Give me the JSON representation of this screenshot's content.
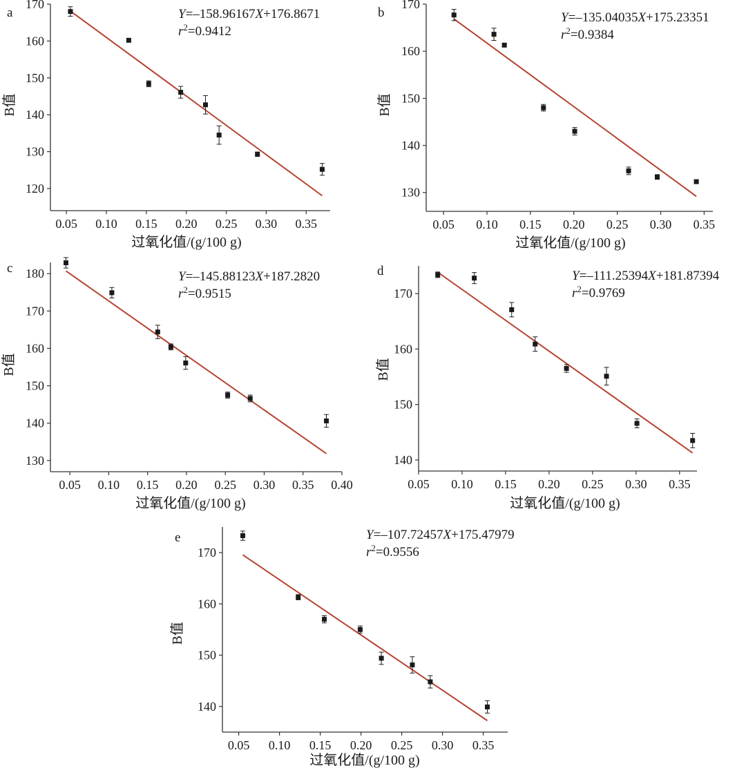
{
  "colors": {
    "fit_line": "#b5422f",
    "marker": "#1a1a1a",
    "axis": "#333333"
  },
  "chart_data": [
    {
      "type": "scatter",
      "panel": "a",
      "xlabel": "过氧化值/(g/100 g)",
      "ylabel": "B值",
      "xlim": [
        0.03,
        0.38
      ],
      "ylim": [
        114,
        170
      ],
      "xticks": [
        0.05,
        0.1,
        0.15,
        0.2,
        0.25,
        0.3,
        0.35
      ],
      "yticks": [
        120,
        130,
        140,
        150,
        160,
        170
      ],
      "x": [
        0.055,
        0.128,
        0.153,
        0.193,
        0.224,
        0.241,
        0.289,
        0.37
      ],
      "y": [
        168.0,
        160.2,
        148.4,
        146.1,
        142.7,
        134.5,
        129.3,
        125.2
      ],
      "err": [
        1.3,
        0.5,
        0.8,
        1.6,
        2.5,
        2.5,
        0.6,
        1.6
      ],
      "fit_x": [
        0.055,
        0.37
      ],
      "equation": {
        "y_var": "Y",
        "eq1": "=–158.96167",
        "x_var": "X",
        "eq2": "+176.8671",
        "r_var": "r",
        "r_sup": "2",
        "r_val": "=0.9412"
      }
    },
    {
      "type": "scatter",
      "panel": "b",
      "xlabel": "过氧化值/(g/100 g)",
      "ylabel": "B值",
      "xlim": [
        0.03,
        0.36
      ],
      "ylim": [
        126,
        170
      ],
      "xticks": [
        0.05,
        0.1,
        0.15,
        0.2,
        0.25,
        0.3,
        0.35
      ],
      "yticks": [
        130,
        140,
        150,
        160,
        170
      ],
      "x": [
        0.062,
        0.108,
        0.12,
        0.165,
        0.201,
        0.263,
        0.296,
        0.341
      ],
      "y": [
        167.7,
        163.6,
        161.3,
        148.0,
        143.0,
        134.6,
        133.3,
        132.3
      ],
      "err": [
        1.2,
        1.3,
        0.4,
        0.7,
        0.8,
        0.8,
        0.5,
        0.4
      ],
      "fit_x": [
        0.062,
        0.341
      ],
      "equation": {
        "y_var": "Y",
        "eq1": "=–135.04035",
        "x_var": "X",
        "eq2": "+175.23351",
        "r_var": "r",
        "r_sup": "2",
        "r_val": "=0.9384"
      }
    },
    {
      "type": "scatter",
      "panel": "c",
      "xlabel": "过氧化值/(g/100 g)",
      "ylabel": "B值",
      "xlim": [
        0.025,
        0.4
      ],
      "ylim": [
        127,
        183
      ],
      "xticks": [
        0.05,
        0.1,
        0.15,
        0.2,
        0.25,
        0.3,
        0.35,
        0.4
      ],
      "yticks": [
        130,
        140,
        150,
        160,
        170,
        180
      ],
      "x": [
        0.045,
        0.104,
        0.163,
        0.18,
        0.199,
        0.253,
        0.282,
        0.38
      ],
      "y": [
        182.9,
        174.9,
        164.4,
        160.4,
        156.1,
        147.5,
        146.6,
        140.6
      ],
      "err": [
        1.4,
        1.4,
        1.8,
        0.8,
        1.7,
        0.8,
        0.9,
        1.7
      ],
      "fit_x": [
        0.045,
        0.38
      ],
      "equation": {
        "y_var": "Y",
        "eq1": "=–145.88123",
        "x_var": "X",
        "eq2": "+187.2820",
        "r_var": "r",
        "r_sup": "2",
        "r_val": "=0.9515"
      }
    },
    {
      "type": "scatter",
      "panel": "d",
      "xlabel": "过氧化值/(g/100 g)",
      "ylabel": "B值",
      "xlim": [
        0.05,
        0.37
      ],
      "ylim": [
        138,
        175
      ],
      "xticks": [
        0.05,
        0.1,
        0.15,
        0.2,
        0.25,
        0.3,
        0.35
      ],
      "yticks": [
        140,
        150,
        160,
        170
      ],
      "x": [
        0.072,
        0.114,
        0.157,
        0.184,
        0.22,
        0.266,
        0.301,
        0.365
      ],
      "y": [
        173.4,
        172.8,
        167.1,
        160.9,
        156.5,
        155.1,
        146.6,
        143.5
      ],
      "err": [
        0.5,
        1.0,
        1.3,
        1.3,
        0.7,
        1.6,
        0.8,
        1.3
      ],
      "fit_x": [
        0.072,
        0.365
      ],
      "equation": {
        "y_var": "Y",
        "eq1": "=–111.25394",
        "x_var": "X",
        "eq2": "+181.87394",
        "r_var": "r",
        "r_sup": "2",
        "r_val": "=0.9769"
      }
    },
    {
      "type": "scatter",
      "panel": "e",
      "xlabel": "过氧化值/(g/100 g)",
      "ylabel": "B值",
      "xlim": [
        0.03,
        0.38
      ],
      "ylim": [
        135,
        175
      ],
      "xticks": [
        0.05,
        0.1,
        0.15,
        0.2,
        0.25,
        0.3,
        0.35
      ],
      "yticks": [
        140,
        150,
        160,
        170
      ],
      "x": [
        0.055,
        0.123,
        0.155,
        0.199,
        0.225,
        0.263,
        0.285,
        0.355
      ],
      "y": [
        173.3,
        161.3,
        157.0,
        155.0,
        149.4,
        148.1,
        144.8,
        139.9
      ],
      "err": [
        0.9,
        0.5,
        0.7,
        0.7,
        1.2,
        1.6,
        1.2,
        1.2
      ],
      "fit_x": [
        0.055,
        0.355
      ],
      "equation": {
        "y_var": "Y",
        "eq1": "=–107.72457",
        "x_var": "X",
        "eq2": "+175.47979",
        "r_var": "r",
        "r_sup": "2",
        "r_val": "=0.9556"
      }
    }
  ]
}
